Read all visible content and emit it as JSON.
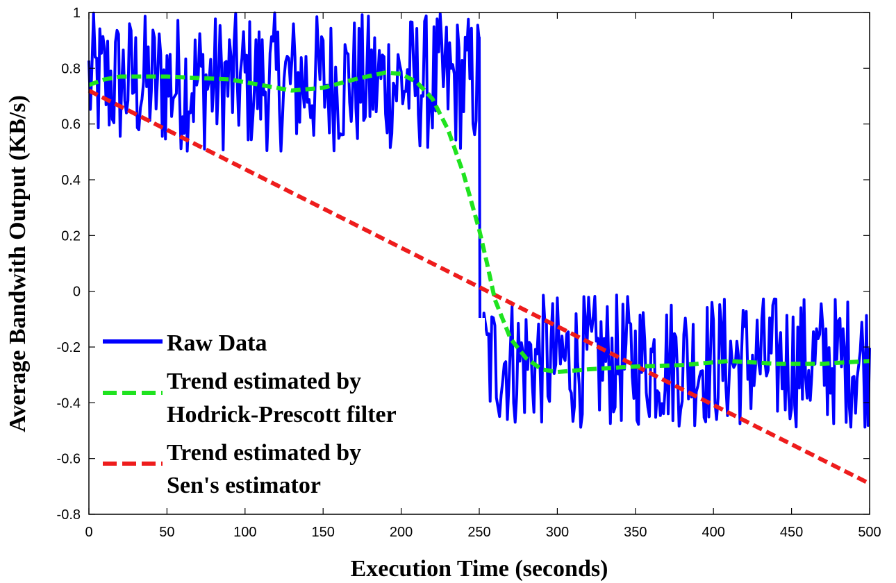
{
  "chart_data": {
    "type": "line",
    "title": "",
    "xlabel": "Execution Time (seconds)",
    "ylabel": "Average Bandwith Output (KB/s)",
    "xlim": [
      0,
      500
    ],
    "ylim": [
      -0.8,
      1
    ],
    "x_ticks": [
      "0",
      "50",
      "100",
      "150",
      "200",
      "250",
      "300",
      "350",
      "400",
      "450",
      "500"
    ],
    "y_ticks": [
      "-0.8",
      "-0.6",
      "-0.4",
      "-0.2",
      "0",
      "0.2",
      "0.4",
      "0.6",
      "0.8",
      "1"
    ],
    "grid": false,
    "legend_position": "lower-left",
    "series": [
      {
        "name": "Raw Data",
        "color": "#0000ff",
        "style": "solid",
        "segments": [
          {
            "x_start": 0,
            "x_end": 250,
            "mean": 0.75,
            "low": 0.5,
            "high": 1.0
          },
          {
            "x_start": 250,
            "x_end": 500,
            "mean": -0.26,
            "low": -0.49,
            "high": -0.01
          }
        ],
        "transition": {
          "x": 250,
          "from": 0.91,
          "to": -0.47
        }
      },
      {
        "name": "Trend estimated by Hodrick-Prescott filter",
        "color": "#1fe31f",
        "style": "dashed",
        "x": [
          0,
          10,
          20,
          30,
          50,
          70,
          90,
          110,
          130,
          150,
          170,
          190,
          200,
          210,
          220,
          230,
          240,
          250,
          255,
          260,
          270,
          280,
          290,
          300,
          320,
          350,
          380,
          410,
          440,
          470,
          500
        ],
        "y": [
          0.74,
          0.76,
          0.77,
          0.77,
          0.77,
          0.765,
          0.76,
          0.74,
          0.72,
          0.73,
          0.76,
          0.785,
          0.78,
          0.75,
          0.69,
          0.58,
          0.42,
          0.22,
          0.1,
          -0.03,
          -0.17,
          -0.24,
          -0.28,
          -0.29,
          -0.28,
          -0.27,
          -0.265,
          -0.25,
          -0.26,
          -0.26,
          -0.25
        ]
      },
      {
        "name": "Trend estimated by Sen's estimator",
        "color": "#ee1c1c",
        "style": "dashed",
        "x": [
          0,
          500
        ],
        "y": [
          0.72,
          -0.69
        ]
      }
    ],
    "legend": [
      {
        "lines": [
          "Raw Data"
        ],
        "color": "#0000ff",
        "style": "solid"
      },
      {
        "lines": [
          "Trend estimated by",
          "Hodrick-Prescott filter"
        ],
        "color": "#1fe31f",
        "style": "dashed"
      },
      {
        "lines": [
          "Trend estimated by",
          "Sen's estimator"
        ],
        "color": "#ee1c1c",
        "style": "dashed"
      }
    ]
  }
}
